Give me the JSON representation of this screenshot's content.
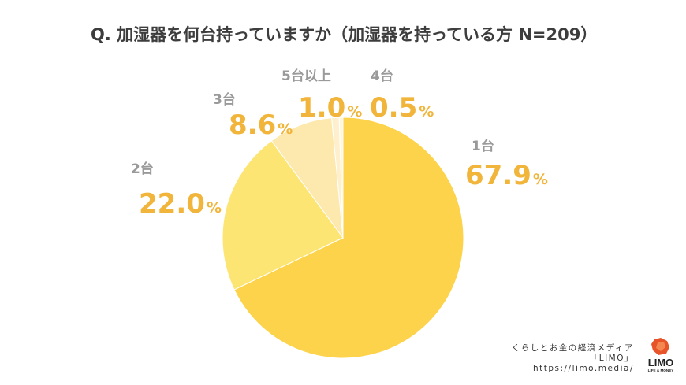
{
  "chart_data": {
    "type": "pie",
    "title": "Q. 加湿器を何台持っていますか（加湿器を持っている方 N=209）",
    "slices": [
      {
        "label": "1台",
        "value": 67.9,
        "value_text": "67.9",
        "unit": "%",
        "color": "#fcd34a"
      },
      {
        "label": "2台",
        "value": 22.0,
        "value_text": "22.0",
        "unit": "%",
        "color": "#fde574"
      },
      {
        "label": "3台",
        "value": 8.6,
        "value_text": "8.6",
        "unit": "%",
        "color": "#fde8ad"
      },
      {
        "label": "5台以上",
        "value": 1.0,
        "value_text": "1.0",
        "unit": "%",
        "color": "#fef0cc"
      },
      {
        "label": "4台",
        "value": 0.5,
        "value_text": "0.5",
        "unit": "%",
        "color": "#fff6dc"
      }
    ],
    "start_angle_deg": 0,
    "direction": "clockwise"
  },
  "credit": {
    "line1": "くらしとお金の経済メディア",
    "line2": "「LIMO」",
    "line3": "https://limo.media/"
  },
  "logo": {
    "name": "LIMO",
    "tagline": "LIFE & MONEY"
  }
}
